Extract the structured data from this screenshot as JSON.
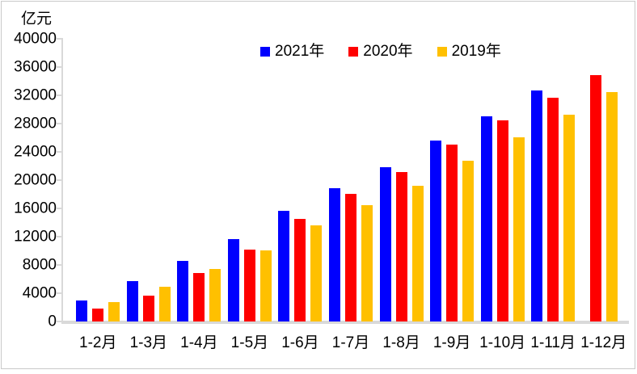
{
  "chart_data": {
    "type": "bar",
    "title": "",
    "unit_label": "亿元",
    "categories": [
      "1-2月",
      "1-3月",
      "1-4月",
      "1-5月",
      "1-6月",
      "1-7月",
      "1-8月",
      "1-9月",
      "1-10月",
      "1-11月",
      "1-12月"
    ],
    "series": [
      {
        "name": "2021年",
        "color": "#0000FE",
        "values": [
          3000,
          5700,
          8600,
          11600,
          15700,
          18900,
          21800,
          25600,
          29000,
          32700,
          null
        ]
      },
      {
        "name": "2020年",
        "color": "#FE0000",
        "values": [
          1800,
          3700,
          6800,
          10200,
          14500,
          18000,
          21100,
          25000,
          28400,
          31600,
          34800
        ]
      },
      {
        "name": "2019年",
        "color": "#FFC000",
        "values": [
          2700,
          4900,
          7400,
          10100,
          13600,
          16400,
          19200,
          22800,
          26000,
          29200,
          32500
        ]
      }
    ],
    "y_axis": {
      "min": 0,
      "max": 40000,
      "step": 4000,
      "tick_labels": [
        "0",
        "4000",
        "8000",
        "12000",
        "16000",
        "20000",
        "24000",
        "28000",
        "32000",
        "36000",
        "40000"
      ]
    },
    "legend_position": "top-center",
    "grid": "off",
    "axis_color": "#D9D9D9",
    "text_color": "#000000"
  }
}
